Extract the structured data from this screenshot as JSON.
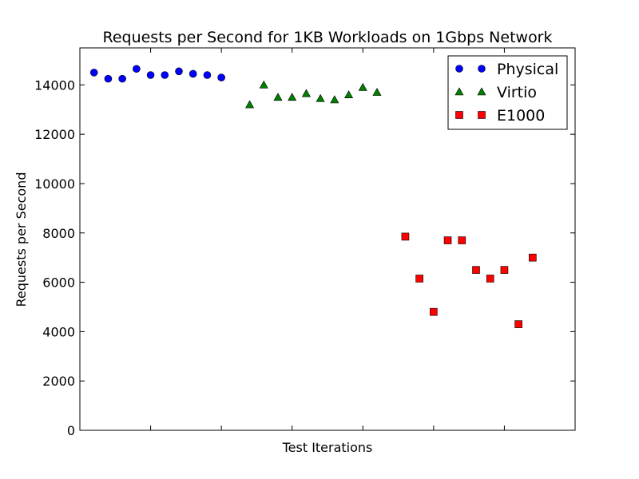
{
  "chart_data": {
    "type": "scatter",
    "title": "Requests per Second for 1KB Workloads on 1Gbps Network",
    "xlabel": "Test Iterations",
    "ylabel": "Requests per Second",
    "xlim": [
      0,
      35
    ],
    "ylim": [
      0,
      15500
    ],
    "yticks": [
      0,
      2000,
      4000,
      6000,
      8000,
      10000,
      12000,
      14000
    ],
    "ytick_labels": [
      "0",
      "2000",
      "4000",
      "6000",
      "8000",
      "10000",
      "12000",
      "14000"
    ],
    "xticks": [
      5,
      10,
      15,
      20,
      25,
      30
    ],
    "grid": false,
    "legend_position": "top-right",
    "series": [
      {
        "name": "Physical",
        "marker": "circle",
        "color": "#0000ff",
        "x": [
          1,
          2,
          3,
          4,
          5,
          6,
          7,
          8,
          9,
          10
        ],
        "y": [
          14500,
          14250,
          14250,
          14650,
          14400,
          14400,
          14550,
          14450,
          14400,
          14300
        ]
      },
      {
        "name": "Virtio",
        "marker": "triangle",
        "color": "#008000",
        "x": [
          12,
          13,
          14,
          15,
          16,
          17,
          18,
          19,
          20,
          21
        ],
        "y": [
          13200,
          14000,
          13500,
          13500,
          13650,
          13450,
          13400,
          13600,
          13900,
          13700
        ]
      },
      {
        "name": "E1000",
        "marker": "square",
        "color": "#ff0000",
        "x": [
          23,
          24,
          25,
          26,
          27,
          28,
          29,
          30,
          31,
          32
        ],
        "y": [
          7850,
          6150,
          4800,
          7700,
          7700,
          6500,
          6150,
          6500,
          4300,
          7000
        ]
      }
    ]
  }
}
